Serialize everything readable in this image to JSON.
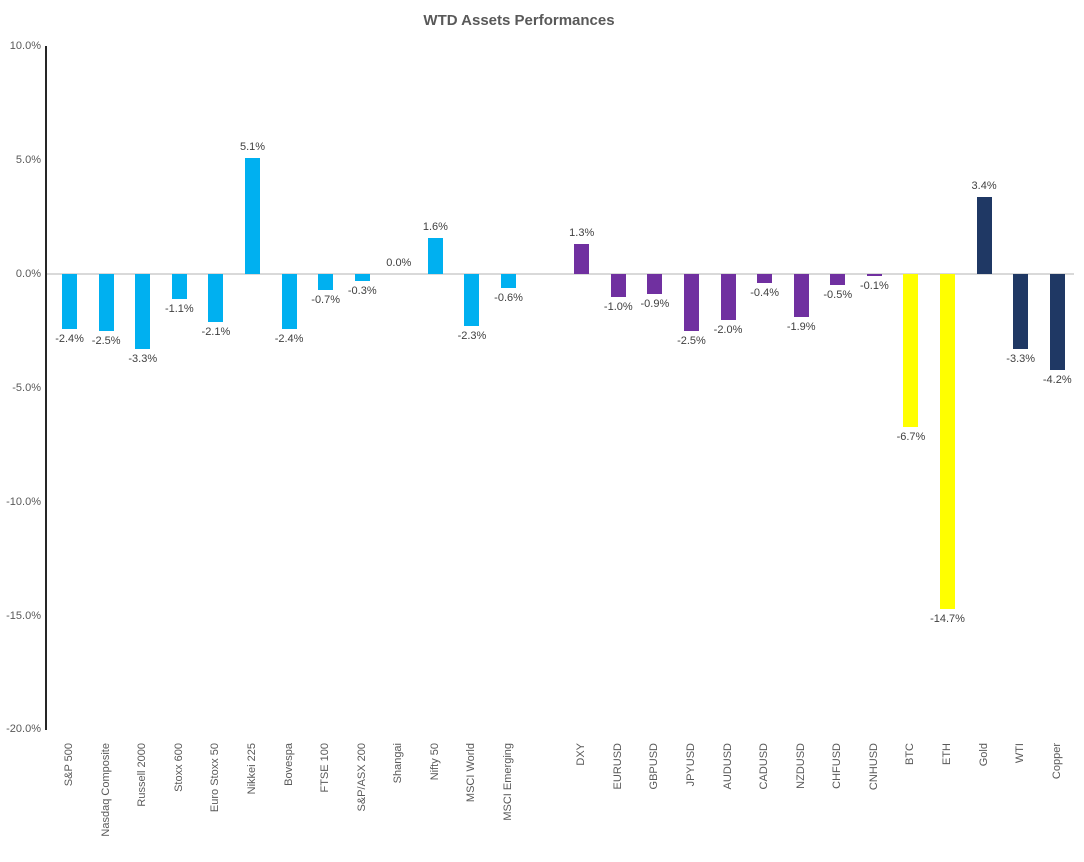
{
  "title": "WTD Assets Performances",
  "chart_data": {
    "type": "bar",
    "title": "WTD Assets Performances",
    "xlabel": "",
    "ylabel": "",
    "ylim": [
      -20,
      10
    ],
    "ytick_step": 5,
    "grid": "zero-baseline-only",
    "legend": "none",
    "value_label_format": "0.0%",
    "category_label_rotation": "vertical-bottom-to-top",
    "colors": {
      "equities": "#00B0F0",
      "currencies": "#7030A0",
      "crypto": "#FFFF00",
      "commodities": "#1F3864",
      "axis_line": "#262626",
      "zero_gridline": "#D9D9D9",
      "title_text": "#595959",
      "axis_text": "#595959",
      "value_text": "#404040"
    },
    "yticks": [
      {
        "value": 10,
        "label": "10.0%"
      },
      {
        "value": 5,
        "label": "5.0%"
      },
      {
        "value": 0,
        "label": "0.0%"
      },
      {
        "value": -5,
        "label": "-5.0%"
      },
      {
        "value": -10,
        "label": "-10.0%"
      },
      {
        "value": -15,
        "label": "-15.0%"
      },
      {
        "value": -20,
        "label": "-20.0%"
      }
    ],
    "bars": [
      {
        "label": "S&P 500",
        "value": -2.4,
        "display": "-2.4%",
        "group": "equities"
      },
      {
        "label": "Nasdaq Composite",
        "value": -2.5,
        "display": "-2.5%",
        "group": "equities"
      },
      {
        "label": "Russell 2000",
        "value": -3.3,
        "display": "-3.3%",
        "group": "equities"
      },
      {
        "label": "Stoxx 600",
        "value": -1.1,
        "display": "-1.1%",
        "group": "equities"
      },
      {
        "label": "Euro Stoxx 50",
        "value": -2.1,
        "display": "-2.1%",
        "group": "equities"
      },
      {
        "label": "Nikkei 225",
        "value": 5.1,
        "display": "5.1%",
        "group": "equities"
      },
      {
        "label": "Bovespa",
        "value": -2.4,
        "display": "-2.4%",
        "group": "equities"
      },
      {
        "label": "FTSE 100",
        "value": -0.7,
        "display": "-0.7%",
        "group": "equities"
      },
      {
        "label": "S&P/ASX 200",
        "value": -0.3,
        "display": "-0.3%",
        "group": "equities"
      },
      {
        "label": "Shangai",
        "value": 0.0,
        "display": "0.0%",
        "group": "equities"
      },
      {
        "label": "Nifty 50",
        "value": 1.6,
        "display": "1.6%",
        "group": "equities"
      },
      {
        "label": "MSCI World",
        "value": -2.3,
        "display": "-2.3%",
        "group": "equities"
      },
      {
        "label": "MSCI Emerging",
        "value": -0.6,
        "display": "-0.6%",
        "group": "equities"
      },
      {
        "label": "",
        "value": null,
        "display": "",
        "group": "spacer"
      },
      {
        "label": "DXY",
        "value": 1.3,
        "display": "1.3%",
        "group": "currencies"
      },
      {
        "label": "EURUSD",
        "value": -1.0,
        "display": "-1.0%",
        "group": "currencies"
      },
      {
        "label": "GBPUSD",
        "value": -0.9,
        "display": "-0.9%",
        "group": "currencies"
      },
      {
        "label": "JPYUSD",
        "value": -2.5,
        "display": "-2.5%",
        "group": "currencies"
      },
      {
        "label": "AUDUSD",
        "value": -2.0,
        "display": "-2.0%",
        "group": "currencies"
      },
      {
        "label": "CADUSD",
        "value": -0.4,
        "display": "-0.4%",
        "group": "currencies"
      },
      {
        "label": "NZDUSD",
        "value": -1.9,
        "display": "-1.9%",
        "group": "currencies"
      },
      {
        "label": "CHFUSD",
        "value": -0.5,
        "display": "-0.5%",
        "group": "currencies"
      },
      {
        "label": "CNHUSD",
        "value": -0.1,
        "display": "-0.1%",
        "group": "currencies"
      },
      {
        "label": "BTC",
        "value": -6.7,
        "display": "-6.7%",
        "group": "crypto"
      },
      {
        "label": "ETH",
        "value": -14.7,
        "display": "-14.7%",
        "group": "crypto"
      },
      {
        "label": "Gold",
        "value": 3.4,
        "display": "3.4%",
        "group": "commodities"
      },
      {
        "label": "WTI",
        "value": -3.3,
        "display": "-3.3%",
        "group": "commodities"
      },
      {
        "label": "Copper",
        "value": -4.2,
        "display": "-4.2%",
        "group": "commodities"
      }
    ]
  }
}
